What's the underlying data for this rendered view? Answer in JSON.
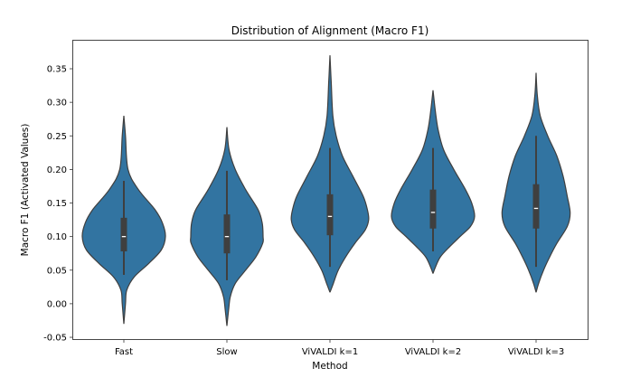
{
  "chart_data": {
    "type": "violin",
    "title": "Distribution of Alignment (Macro F1)",
    "xlabel": "Method",
    "ylabel": "Macro F1 (Activated Values)",
    "ylim": [
      -0.055,
      0.392
    ],
    "yticks": [
      "-0.05",
      "0.00",
      "0.05",
      "0.10",
      "0.15",
      "0.20",
      "0.25",
      "0.30",
      "0.35"
    ],
    "grid": false,
    "colors": {
      "fill": "#3274a1",
      "edge": "#3f3f3f",
      "median": "#ffffff"
    },
    "categories": [
      "Fast",
      "Slow",
      "ViVALDI k=1",
      "ViVALDI k=2",
      "ViVALDI k=3"
    ],
    "violins": [
      {
        "min": -0.03,
        "max": 0.28,
        "q1": 0.078,
        "median": 0.1,
        "q3": 0.128,
        "whisker_low": 0.043,
        "whisker_high": 0.183,
        "density": [
          [
            -0.03,
            0
          ],
          [
            0.0,
            0.04
          ],
          [
            0.02,
            0.07
          ],
          [
            0.04,
            0.25
          ],
          [
            0.06,
            0.6
          ],
          [
            0.08,
            0.9
          ],
          [
            0.1,
            1.0
          ],
          [
            0.12,
            0.93
          ],
          [
            0.14,
            0.75
          ],
          [
            0.17,
            0.35
          ],
          [
            0.2,
            0.1
          ],
          [
            0.25,
            0.04
          ],
          [
            0.28,
            0
          ]
        ]
      },
      {
        "min": -0.033,
        "max": 0.263,
        "q1": 0.075,
        "median": 0.1,
        "q3": 0.133,
        "whisker_low": 0.035,
        "whisker_high": 0.198,
        "density": [
          [
            -0.033,
            0
          ],
          [
            -0.01,
            0.04
          ],
          [
            0.01,
            0.08
          ],
          [
            0.03,
            0.2
          ],
          [
            0.05,
            0.45
          ],
          [
            0.07,
            0.7
          ],
          [
            0.09,
            0.86
          ],
          [
            0.1,
            0.87
          ],
          [
            0.12,
            0.85
          ],
          [
            0.14,
            0.75
          ],
          [
            0.17,
            0.45
          ],
          [
            0.2,
            0.2
          ],
          [
            0.23,
            0.05
          ],
          [
            0.263,
            0
          ]
        ]
      },
      {
        "min": 0.017,
        "max": 0.37,
        "q1": 0.102,
        "median": 0.13,
        "q3": 0.163,
        "whisker_low": 0.055,
        "whisker_high": 0.232,
        "density": [
          [
            0.017,
            0
          ],
          [
            0.03,
            0.08
          ],
          [
            0.05,
            0.2
          ],
          [
            0.07,
            0.38
          ],
          [
            0.09,
            0.6
          ],
          [
            0.11,
            0.85
          ],
          [
            0.125,
            0.93
          ],
          [
            0.14,
            0.9
          ],
          [
            0.16,
            0.8
          ],
          [
            0.19,
            0.55
          ],
          [
            0.22,
            0.3
          ],
          [
            0.25,
            0.15
          ],
          [
            0.28,
            0.07
          ],
          [
            0.33,
            0.03
          ],
          [
            0.37,
            0
          ]
        ]
      },
      {
        "min": 0.045,
        "max": 0.318,
        "q1": 0.112,
        "median": 0.136,
        "q3": 0.17,
        "whisker_low": 0.078,
        "whisker_high": 0.232,
        "density": [
          [
            0.045,
            0
          ],
          [
            0.055,
            0.06
          ],
          [
            0.07,
            0.18
          ],
          [
            0.085,
            0.4
          ],
          [
            0.1,
            0.65
          ],
          [
            0.115,
            0.9
          ],
          [
            0.13,
            1.0
          ],
          [
            0.15,
            0.93
          ],
          [
            0.17,
            0.78
          ],
          [
            0.2,
            0.5
          ],
          [
            0.23,
            0.25
          ],
          [
            0.26,
            0.12
          ],
          [
            0.29,
            0.05
          ],
          [
            0.318,
            0
          ]
        ]
      },
      {
        "min": 0.017,
        "max": 0.344,
        "q1": 0.112,
        "median": 0.142,
        "q3": 0.178,
        "whisker_low": 0.055,
        "whisker_high": 0.25,
        "density": [
          [
            0.017,
            0
          ],
          [
            0.03,
            0.06
          ],
          [
            0.05,
            0.18
          ],
          [
            0.07,
            0.33
          ],
          [
            0.09,
            0.5
          ],
          [
            0.115,
            0.75
          ],
          [
            0.135,
            0.82
          ],
          [
            0.16,
            0.75
          ],
          [
            0.19,
            0.65
          ],
          [
            0.22,
            0.5
          ],
          [
            0.25,
            0.28
          ],
          [
            0.28,
            0.1
          ],
          [
            0.31,
            0.03
          ],
          [
            0.344,
            0
          ]
        ]
      }
    ]
  }
}
